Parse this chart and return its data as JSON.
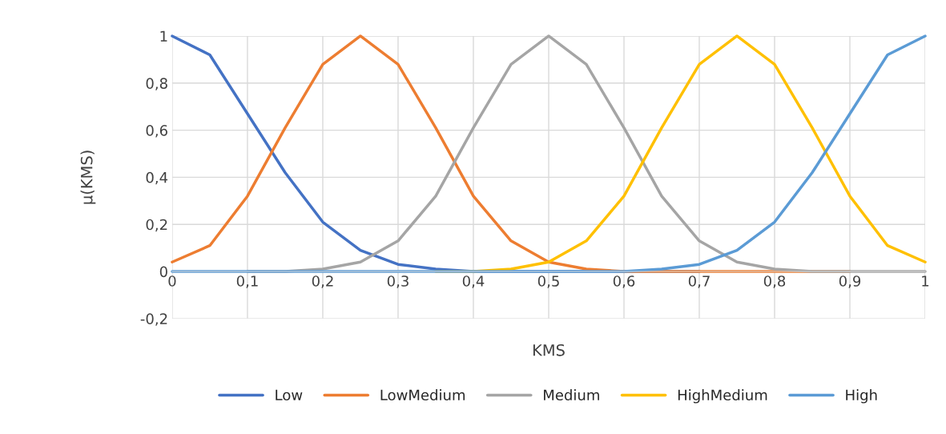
{
  "chart_data": {
    "type": "line",
    "xlabel": "KMS",
    "ylabel": "μ(KMS)",
    "x": [
      0,
      0.05,
      0.1,
      0.15,
      0.2,
      0.25,
      0.3,
      0.35,
      0.4,
      0.45,
      0.5,
      0.55,
      0.6,
      0.65,
      0.7,
      0.75,
      0.8,
      0.85,
      0.9,
      0.95,
      1
    ],
    "series": [
      {
        "name": "Low",
        "color": "#4472c4",
        "values": [
          1,
          0.92,
          0.67,
          0.42,
          0.21,
          0.09,
          0.03,
          0.01,
          0,
          0,
          0,
          0,
          0,
          0,
          0,
          null,
          null,
          null,
          null,
          null,
          null
        ]
      },
      {
        "name": "LowMedium",
        "color": "#ed7d31",
        "values": [
          0.04,
          0.11,
          0.32,
          0.61,
          0.88,
          1,
          0.88,
          0.61,
          0.32,
          0.13,
          0.04,
          0.01,
          0,
          0,
          0,
          0,
          0,
          0,
          0,
          null,
          null
        ]
      },
      {
        "name": "Medium",
        "color": "#a5a5a5",
        "values": [
          null,
          null,
          0,
          0,
          0.01,
          0.04,
          0.13,
          0.32,
          0.61,
          0.88,
          1,
          0.88,
          0.61,
          0.32,
          0.13,
          0.04,
          0.01,
          0,
          0,
          0,
          0
        ]
      },
      {
        "name": "HighMedium",
        "color": "#ffc000",
        "values": [
          null,
          null,
          null,
          null,
          null,
          null,
          null,
          0,
          0,
          0.01,
          0.04,
          0.13,
          0.32,
          0.61,
          0.88,
          1,
          0.88,
          0.61,
          0.32,
          0.11,
          0.04
        ]
      },
      {
        "name": "High",
        "color": "#5b9bd5",
        "values": [
          0,
          0,
          0,
          0,
          0,
          0,
          0,
          0,
          0,
          0,
          0,
          0,
          0,
          0.01,
          0.03,
          0.09,
          0.21,
          0.42,
          0.67,
          0.92,
          1
        ]
      }
    ],
    "xlim": [
      0,
      1
    ],
    "xticks": [
      0,
      {
        "value": 0.1,
        "label": "0,1"
      },
      {
        "value": 0.2,
        "label": "0,2"
      },
      {
        "value": 0.3,
        "label": "0,3"
      },
      {
        "value": 0.4,
        "label": "0,4"
      },
      {
        "value": 0.5,
        "label": "0,5"
      },
      {
        "value": 0.6,
        "label": "0,6"
      },
      {
        "value": 0.7,
        "label": "0,7"
      },
      {
        "value": 0.8,
        "label": "0,8"
      },
      {
        "value": 0.9,
        "label": "0,9"
      },
      1
    ],
    "ylim": [
      -0.2,
      1
    ],
    "yticks": [
      {
        "value": -0.2,
        "label": "-0,2"
      },
      0,
      {
        "value": 0.2,
        "label": "0,2"
      },
      {
        "value": 0.4,
        "label": "0,4"
      },
      {
        "value": 0.6,
        "label": "0,6"
      },
      {
        "value": 0.8,
        "label": "0,8"
      },
      1
    ],
    "grid": true,
    "legend": "bottom",
    "marker": "none",
    "line_style": "solid"
  }
}
